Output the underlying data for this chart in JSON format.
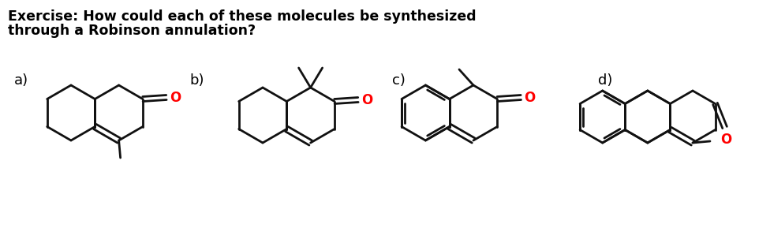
{
  "title_line1": "Exercise: How could each of these molecules be synthesized",
  "title_line2": "through a Robinson annulation?",
  "title_fontsize": 12.5,
  "title_fontweight": "bold",
  "labels": [
    "a)",
    "b)",
    "c)",
    "d)"
  ],
  "label_fontsize": 13,
  "bg_color": "#ffffff",
  "bond_color": "#111111",
  "oxygen_color": "#ff0000",
  "bond_lw": 2.0,
  "fig_w": 9.76,
  "fig_h": 3.08,
  "dpi": 100
}
